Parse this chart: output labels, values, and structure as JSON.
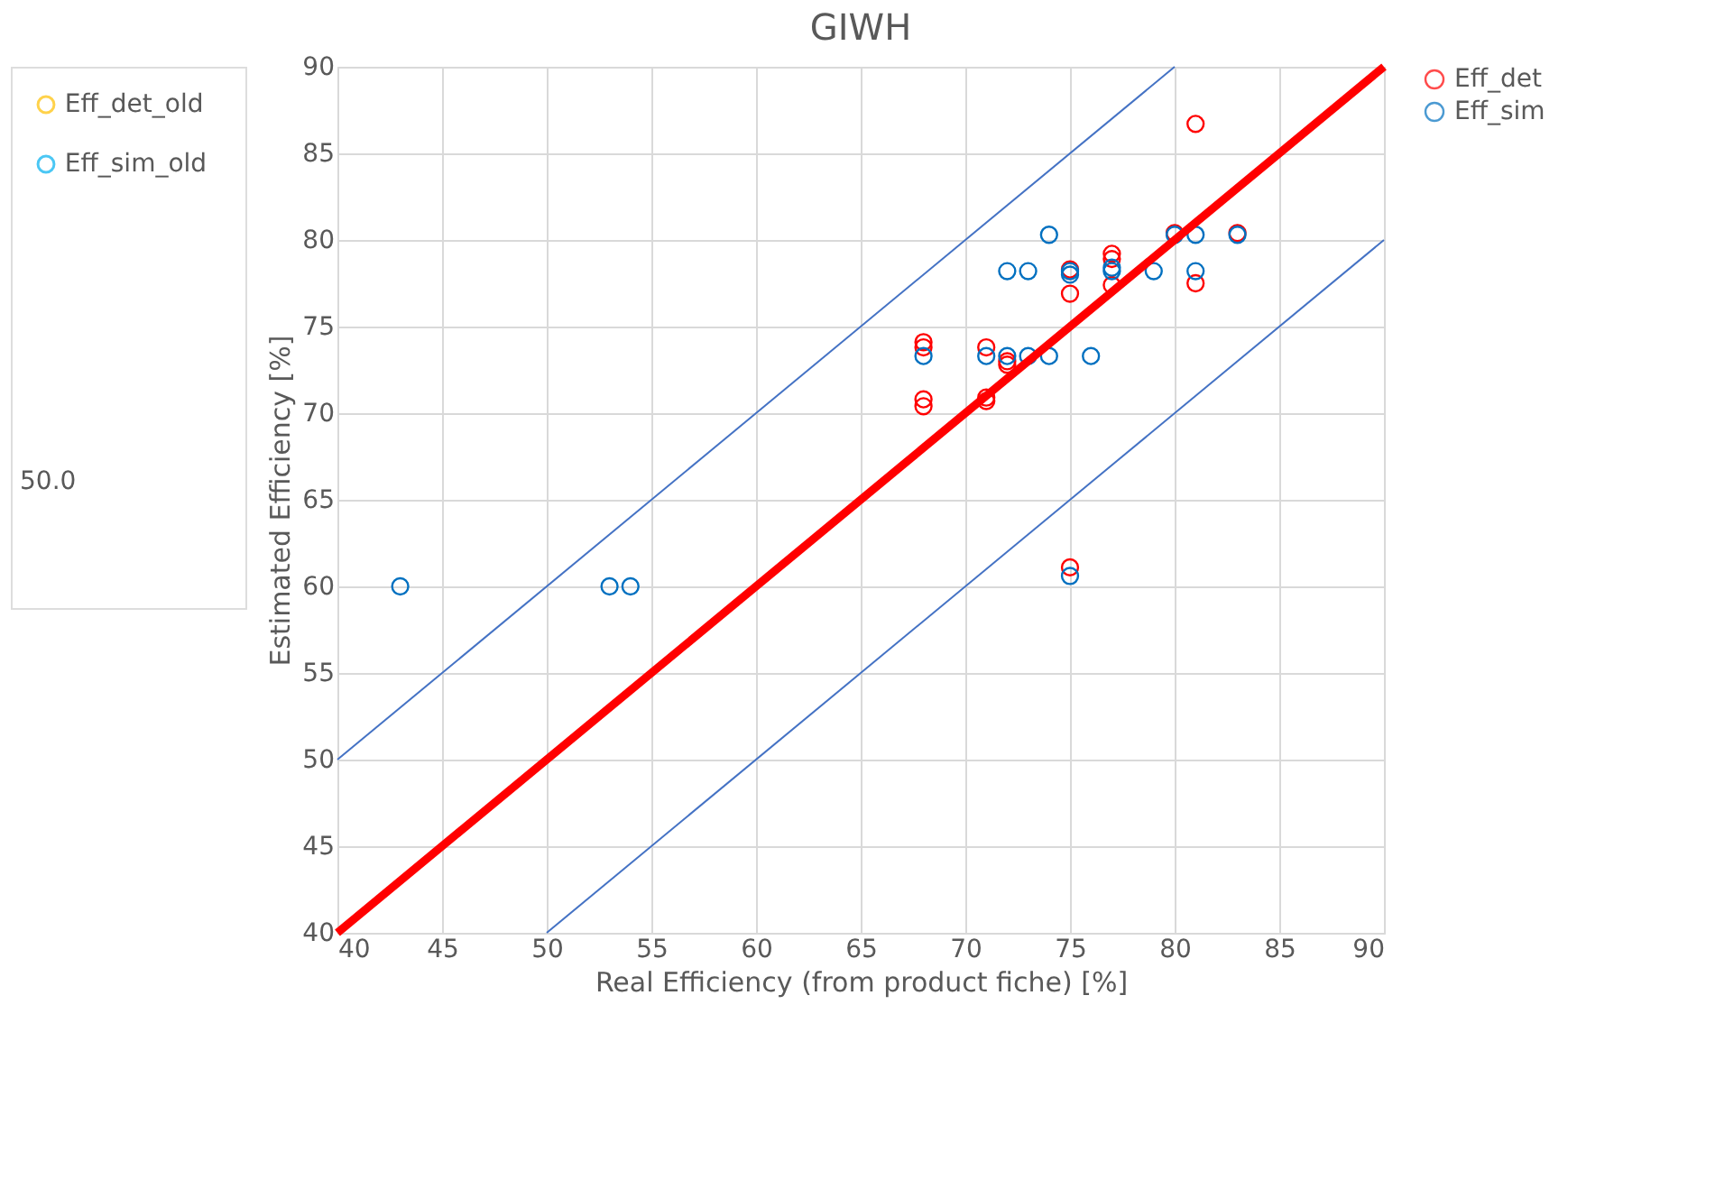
{
  "chart_data": [
    {
      "type": "scatter",
      "title": "GIWH",
      "xlabel": "Real Efficiency (from product fiche) [%]",
      "ylabel": "Estimated Efficiency [%]",
      "xlim": [
        40,
        90
      ],
      "xticks": [
        40,
        45,
        50,
        55,
        60,
        65,
        70,
        75,
        80,
        85,
        90
      ],
      "ylim": [
        40,
        90
      ],
      "yticks": [
        40,
        45,
        50,
        55,
        60,
        65,
        70,
        75,
        80,
        85,
        90
      ],
      "grid": true,
      "legend": "right",
      "marker": "circle",
      "series": [
        {
          "name": "Eff_det",
          "color": "#ff0000",
          "x": [
            81,
            77,
            77,
            77,
            75,
            75,
            75,
            81,
            68,
            68,
            68,
            68,
            71,
            71,
            71,
            72,
            72,
            80,
            83
          ],
          "values": [
            86.7,
            79.2,
            78.9,
            77.4,
            78.3,
            76.9,
            61.1,
            77.5,
            74.1,
            73.8,
            70.8,
            70.4,
            73.8,
            70.9,
            70.7,
            73.0,
            72.8,
            80.4,
            80.4
          ]
        },
        {
          "name": "Eff_sim",
          "color": "#0070c0",
          "x": [
            43,
            53,
            54,
            68,
            71,
            72,
            73,
            74,
            76,
            72,
            73,
            75,
            77,
            79,
            81,
            74,
            80,
            81,
            83,
            75,
            75,
            77
          ],
          "values": [
            60,
            60,
            60,
            73.3,
            73.3,
            73.3,
            73.3,
            73.3,
            73.3,
            78.2,
            78.2,
            78.2,
            78.2,
            78.2,
            78.2,
            80.3,
            80.3,
            80.3,
            80.3,
            60.6,
            78.0,
            78.4
          ]
        },
        {
          "type": "line",
          "color": "#ff0000",
          "x": [
            40,
            90
          ],
          "values": [
            40,
            90
          ],
          "line_style": "solid",
          "marker": "none"
        },
        {
          "type": "line",
          "color": "#4472c4",
          "x": [
            40,
            80
          ],
          "values": [
            50,
            90
          ],
          "line_style": "solid",
          "marker": "none"
        },
        {
          "type": "line",
          "color": "#4472c4",
          "x": [
            50,
            90
          ],
          "values": [
            40,
            80
          ],
          "line_style": "solid",
          "marker": "none"
        }
      ]
    },
    {
      "type": "other",
      "legend": "right",
      "series": [
        {
          "name": "Eff_det_old",
          "color": "#ffc000"
        },
        {
          "name": "Eff_sim_old",
          "color": "#00b0f0"
        }
      ],
      "annotations": [
        "50.0"
      ]
    }
  ]
}
